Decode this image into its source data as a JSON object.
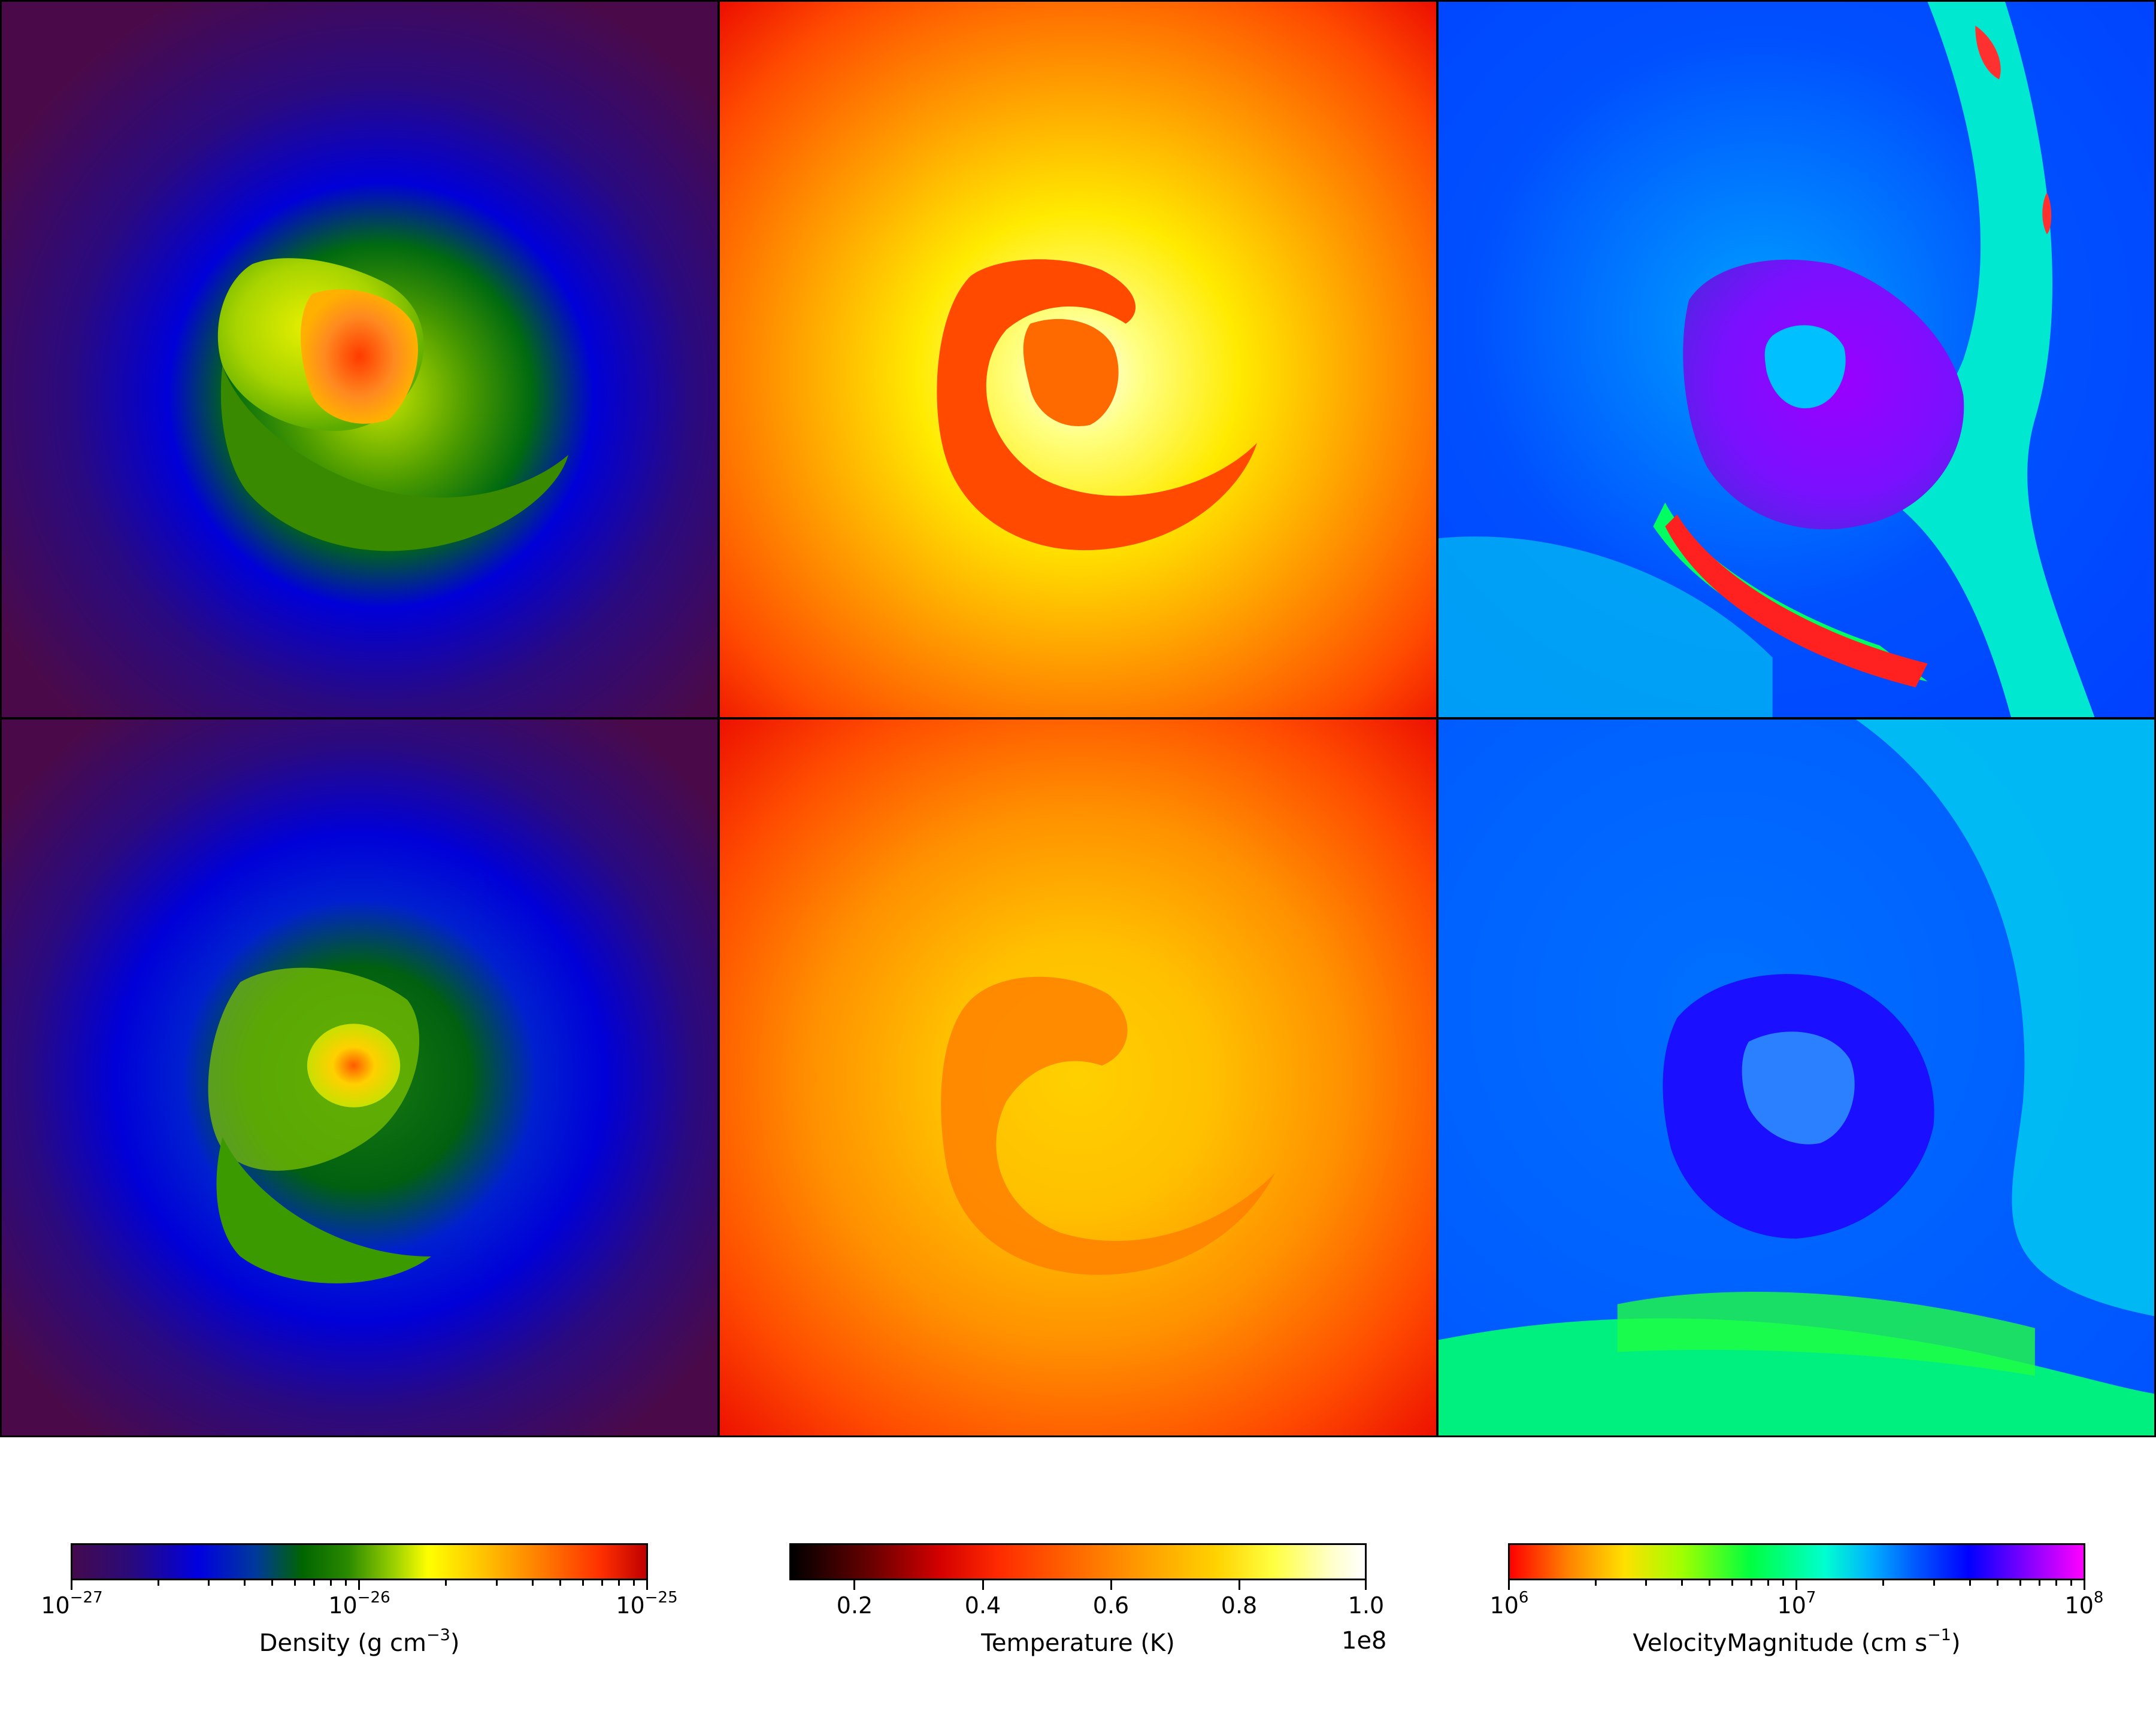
{
  "colorbars": {
    "density": {
      "label_text": "Density (g cm",
      "label_exp": "−3",
      "label_close": ")",
      "tick_base": "10",
      "tick_exps": [
        "−27",
        "−26",
        "−25"
      ],
      "range": [
        1e-27,
        1e-25
      ],
      "scale": "log",
      "colormap": [
        "#440a4e",
        "#0000e0",
        "#006400",
        "#9ad000",
        "#ffff00",
        "#ff7a00",
        "#c00000"
      ]
    },
    "temperature": {
      "label": "Temperature (K)",
      "ticks": [
        "0.2",
        "0.4",
        "0.6",
        "0.8",
        "1.0"
      ],
      "offset": "1e8",
      "range": [
        0.12,
        1.0
      ],
      "scale": "linear",
      "colormap": [
        "#000000",
        "#d40000",
        "#ff6a00",
        "#ffd200",
        "#ffffff"
      ]
    },
    "velocity": {
      "label_text": "VelocityMagnitude (cm s",
      "label_exp": "−1",
      "label_close": ")",
      "tick_base": "10",
      "tick_exps": [
        "6",
        "7",
        "8"
      ],
      "range": [
        1000000.0,
        100000000.0
      ],
      "scale": "log",
      "colormap": [
        "#ff0000",
        "#ffe000",
        "#00ff40",
        "#00ffd0",
        "#0060ff",
        "#0000ff",
        "#ff00ff"
      ]
    }
  },
  "panels": {
    "rows": 2,
    "columns": [
      "density",
      "temperature",
      "velocity"
    ]
  }
}
